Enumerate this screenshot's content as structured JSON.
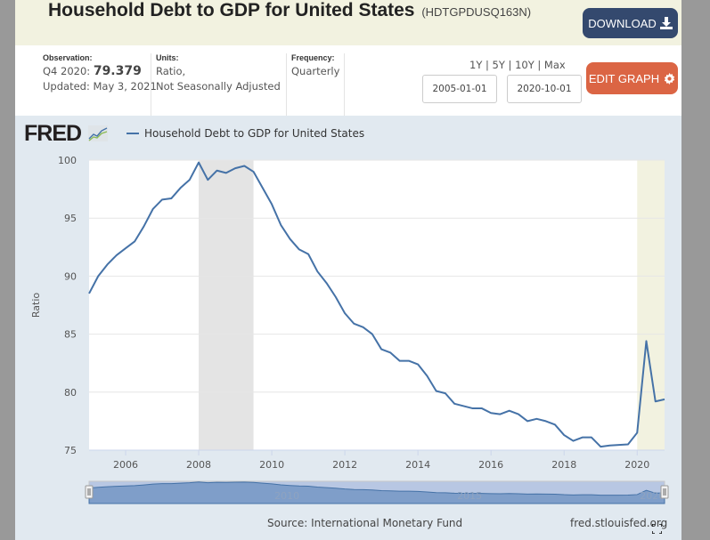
{
  "header": {
    "title": "Household Debt to GDP for United States",
    "series_code": "(HDTGPDUSQ163N)",
    "download_label": "DOWNLOAD",
    "download_icon": "download-icon"
  },
  "meta": {
    "observation_label": "Observation:",
    "observation_period": "Q4 2020:",
    "observation_value": "79.379",
    "updated": "Updated: May 3, 2021",
    "units_label": "Units:",
    "units_line1": "Ratio,",
    "units_line2": "Not Seasonally Adjusted",
    "frequency_label": "Frequency:",
    "frequency_value": "Quarterly"
  },
  "controls": {
    "ranges": [
      "1Y",
      "5Y",
      "10Y",
      "Max"
    ],
    "range_separator": "|",
    "start_date": "2005-01-01",
    "end_date": "2020-10-01",
    "edit_label": "EDIT GRAPH",
    "edit_icon": "gear-icon"
  },
  "graph": {
    "logo_text": "FRED",
    "source": "Source: International Monetary Fund",
    "site": "fred.stlouisfed.org",
    "navigator_labels": [
      "2010",
      "2015",
      "2020"
    ]
  },
  "colors": {
    "line": "#4572a7",
    "recession": "#e4e4e4",
    "covid": "#f2f2e0",
    "download_bg": "#34496e",
    "edit_bg": "#db6544"
  },
  "chart_data": {
    "type": "line",
    "title": "Household Debt to GDP for United States",
    "xlabel": "",
    "ylabel": "Ratio",
    "xlim": [
      2005.0,
      2020.75
    ],
    "ylim": [
      75,
      100
    ],
    "yticks": [
      75,
      80,
      85,
      90,
      95,
      100
    ],
    "xticks": [
      2006,
      2008,
      2010,
      2012,
      2014,
      2016,
      2018,
      2020
    ],
    "grid": true,
    "legend": "top-left",
    "recessions": [
      [
        2008.0,
        2009.5
      ],
      [
        2020.0,
        2020.75
      ]
    ],
    "series": [
      {
        "name": "Household Debt to GDP for United States",
        "start": 2005.0,
        "step": 0.25,
        "values": [
          88.5,
          90.0,
          91.0,
          91.8,
          92.4,
          93.0,
          94.3,
          95.8,
          96.6,
          96.7,
          97.6,
          98.3,
          99.8,
          98.3,
          99.1,
          98.9,
          99.3,
          99.5,
          99.0,
          97.6,
          96.2,
          94.4,
          93.2,
          92.3,
          91.9,
          90.4,
          89.4,
          88.2,
          86.8,
          85.9,
          85.6,
          85.0,
          83.7,
          83.4,
          82.7,
          82.7,
          82.4,
          81.4,
          80.1,
          79.9,
          79.0,
          78.8,
          78.6,
          78.6,
          78.2,
          78.1,
          78.4,
          78.1,
          77.5,
          77.7,
          77.5,
          77.2,
          76.3,
          75.8,
          76.1,
          76.1,
          75.3,
          75.4,
          75.45,
          75.5,
          76.5,
          84.4,
          79.2,
          79.379
        ]
      }
    ]
  }
}
